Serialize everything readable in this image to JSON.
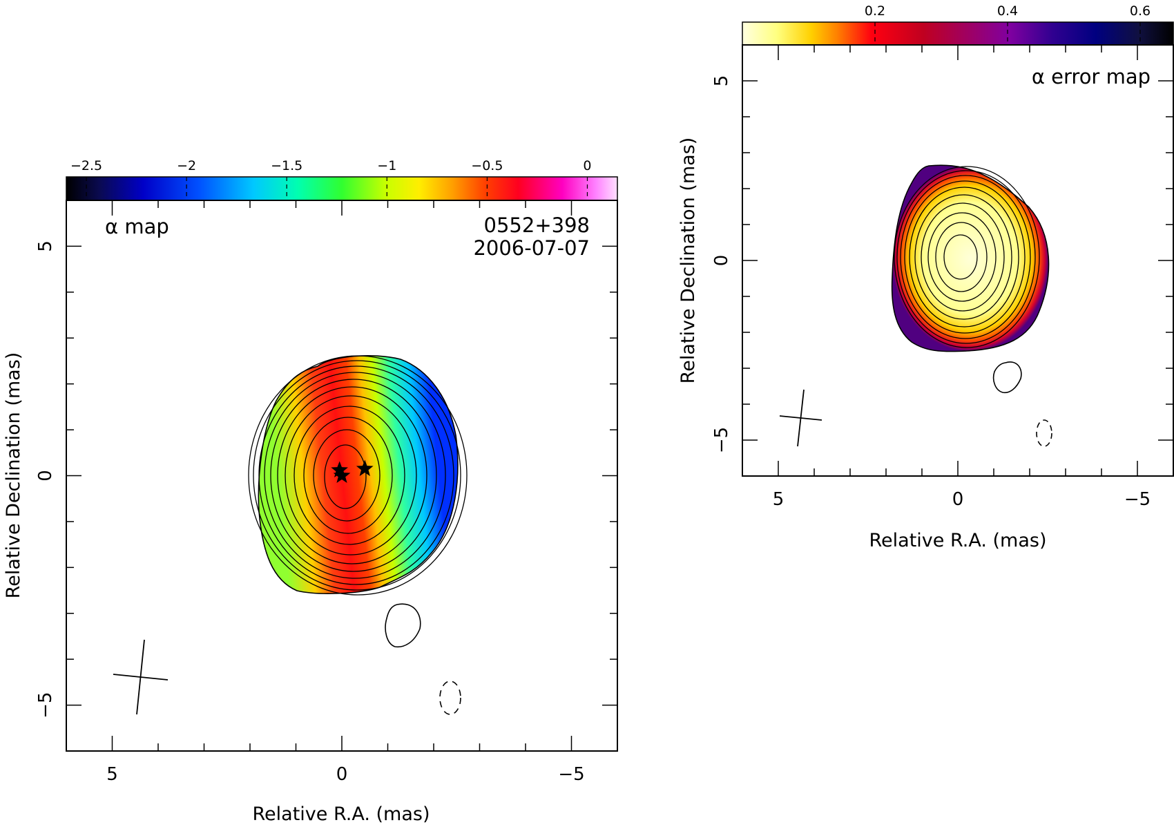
{
  "figure": {
    "source_name": "0552+398",
    "epoch": "2006-07-07"
  },
  "chart_data": [
    {
      "type": "heatmap",
      "panel_label": "α map",
      "xlabel": "Relative R.A. (mas)",
      "ylabel": "Relative Declination (mas)",
      "xlim": [
        6,
        -6
      ],
      "ylim": [
        -6,
        6
      ],
      "x_ticks": [
        "5",
        "0",
        "−5"
      ],
      "y_ticks": [
        "5",
        "0",
        "−5"
      ],
      "colorbar": {
        "range": [
          -2.6,
          0.15
        ],
        "ticks": [
          "−2.5",
          "−2",
          "−1.5",
          "−1",
          "−0.5",
          "0"
        ],
        "colormap": "black-blue-cyan-green-yellow-orange-red-magenta-pink"
      },
      "markers": [
        {
          "symbol": "star",
          "x": 0.05,
          "y": 0.12
        },
        {
          "symbol": "star",
          "x": 0.0,
          "y": 0.0
        },
        {
          "symbol": "star",
          "x": -0.5,
          "y": 0.15
        }
      ],
      "contours": {
        "center": [
          0.0,
          0.0
        ],
        "count": 12,
        "outer_extent_x": [
          -2.5,
          1.8
        ],
        "outer_extent_y": [
          -2.5,
          2.6
        ]
      },
      "beam_cross": {
        "x": 4.3,
        "y": -4.4
      },
      "extra_contours": [
        {
          "style": "solid",
          "x": -1.4,
          "y": -3.2
        },
        {
          "style": "dashed",
          "x": -2.4,
          "y": -4.8
        }
      ]
    },
    {
      "type": "heatmap",
      "panel_label": "α error map",
      "xlabel": "Relative R.A. (mas)",
      "ylabel": "Relative Declination (mas)",
      "xlim": [
        6,
        -6
      ],
      "ylim": [
        -6,
        6
      ],
      "x_ticks": [
        "5",
        "0",
        "−5"
      ],
      "y_ticks": [
        "5",
        "0",
        "−5"
      ],
      "colorbar": {
        "range": [
          0.0,
          0.65
        ],
        "ticks": [
          "0.2",
          "0.4",
          "0.6"
        ],
        "colormap": "white-yellow-orange-red-purple-navy-black"
      },
      "contours": {
        "center": [
          0.0,
          0.0
        ],
        "count": 12
      },
      "beam_cross": {
        "x": 4.3,
        "y": -4.4
      },
      "extra_contours": [
        {
          "style": "solid",
          "x": -1.5,
          "y": -3.2
        },
        {
          "style": "dashed",
          "x": -2.4,
          "y": -4.8
        }
      ]
    }
  ],
  "colors": {
    "axis": "#000000",
    "background": "#ffffff"
  }
}
